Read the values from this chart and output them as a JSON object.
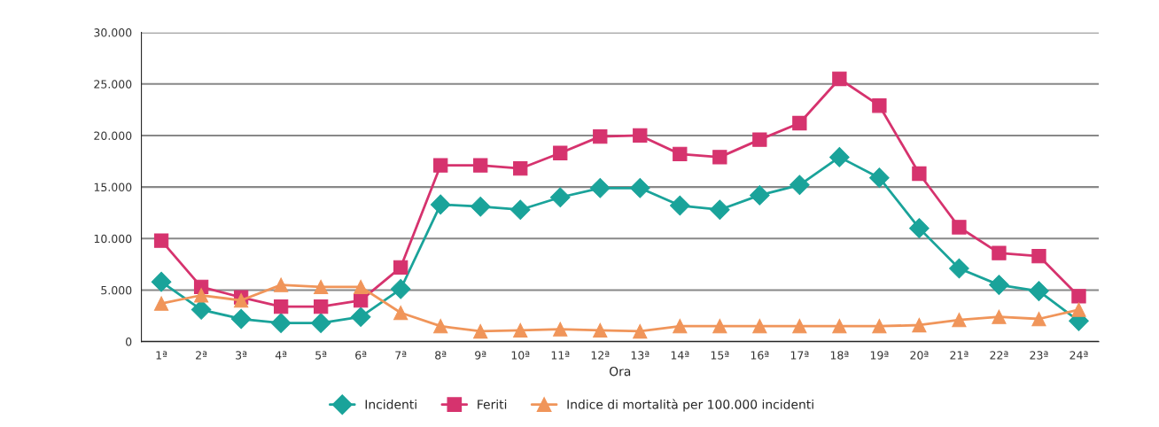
{
  "chart_data": {
    "type": "line",
    "xlabel": "Ora",
    "categories": [
      "1ª",
      "2ª",
      "3ª",
      "4ª",
      "5ª",
      "6ª",
      "7ª",
      "8ª",
      "9ª",
      "10ª",
      "11ª",
      "12ª",
      "13ª",
      "14ª",
      "15ª",
      "16ª",
      "17ª",
      "18ª",
      "19ª",
      "20ª",
      "21ª",
      "22ª",
      "23ª",
      "24ª"
    ],
    "series": [
      {
        "name": "Incidenti",
        "color": "#1aa39a",
        "marker": "diamond",
        "values": [
          5800,
          3100,
          2200,
          1800,
          1800,
          2400,
          5100,
          13300,
          13100,
          12800,
          14000,
          14900,
          14900,
          13200,
          12800,
          14200,
          15200,
          17900,
          15900,
          11000,
          7100,
          5500,
          4900,
          2000
        ]
      },
      {
        "name": "Feriti",
        "color": "#d6336e",
        "marker": "square",
        "values": [
          9800,
          5300,
          4300,
          3400,
          3400,
          4000,
          7200,
          17100,
          17100,
          16800,
          18300,
          19900,
          20000,
          18200,
          17900,
          19600,
          21200,
          25500,
          22900,
          16300,
          11100,
          8600,
          8300,
          4400
        ]
      },
      {
        "name": "Indice di mortalità per 100.000 incidenti",
        "color": "#f0955a",
        "marker": "triangle",
        "values": [
          3700,
          4500,
          4000,
          5500,
          5300,
          5300,
          2800,
          1500,
          1000,
          1100,
          1200,
          1100,
          1000,
          1500,
          1500,
          1500,
          1500,
          1500,
          1500,
          1600,
          2100,
          2400,
          2200,
          3100
        ]
      }
    ],
    "ylim": [
      0,
      30000
    ],
    "yticks": [
      0,
      {
        "value": 5000,
        "label": "5.000"
      },
      {
        "value": 10000,
        "label": "10.000"
      },
      {
        "value": 15000,
        "label": "15.000"
      },
      {
        "value": 20000,
        "label": "20.000"
      },
      {
        "value": 25000,
        "label": "25.000"
      },
      {
        "value": 30000,
        "label": "30.000"
      }
    ],
    "grid": "y",
    "legend": "bottom",
    "line_style": "solid"
  }
}
